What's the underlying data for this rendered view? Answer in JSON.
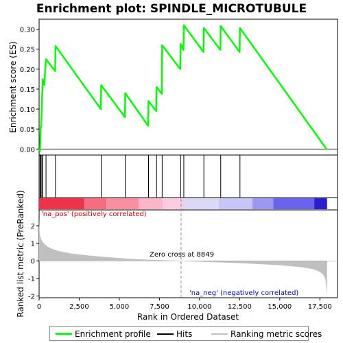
{
  "chart_data": {
    "type": "line",
    "title": "Enrichment plot: SPINDLE_MICROTUBULE",
    "es_panel": {
      "ylabel": "Enrichment score (ES)",
      "ylim": [
        -0.015,
        0.325
      ],
      "yticks": [
        "0.00",
        "0.05",
        "0.10",
        "0.15",
        "0.20",
        "0.25",
        "0.30"
      ],
      "ytick_values": [
        0.0,
        0.05,
        0.1,
        0.15,
        0.2,
        0.25,
        0.3
      ],
      "series": [
        {
          "name": "Enrichment profile",
          "color": "#00ff00",
          "x": [
            0,
            60,
            100,
            130,
            170,
            230,
            330,
            380,
            430,
            1000,
            1020,
            3850,
            3870,
            5350,
            5370,
            6800,
            6820,
            7300,
            7320,
            7650,
            7670,
            8800,
            8820,
            9000,
            9020,
            10250,
            10270,
            11300,
            11320,
            12500,
            12520,
            17950
          ],
          "y": [
            0.0,
            -0.005,
            0.055,
            0.055,
            0.11,
            0.175,
            0.16,
            0.2,
            0.225,
            0.195,
            0.258,
            0.1,
            0.16,
            0.08,
            0.14,
            0.058,
            0.12,
            0.095,
            0.155,
            0.138,
            0.26,
            0.2,
            0.263,
            0.248,
            0.31,
            0.243,
            0.303,
            0.248,
            0.308,
            0.243,
            0.303,
            -0.002
          ]
        }
      ]
    },
    "hits": [
      60,
      100,
      170,
      230,
      430,
      1020,
      3870,
      5370,
      6820,
      7320,
      7670,
      8820,
      9020,
      10270,
      11320,
      12520
    ],
    "hits_color": "#000000",
    "color_bar": {
      "segments": [
        {
          "from": 0,
          "to": 2800,
          "color": "#f0324a"
        },
        {
          "from": 2800,
          "to": 4200,
          "color": "#f76c7e"
        },
        {
          "from": 4200,
          "to": 6200,
          "color": "#fa8fa0"
        },
        {
          "from": 6200,
          "to": 7700,
          "color": "#fbb5c8"
        },
        {
          "from": 7700,
          "to": 9000,
          "color": "#fccce3"
        },
        {
          "from": 9000,
          "to": 11200,
          "color": "#dcd9f7"
        },
        {
          "from": 11200,
          "to": 13300,
          "color": "#c7c5f7"
        },
        {
          "from": 13300,
          "to": 14600,
          "color": "#9c98f2"
        },
        {
          "from": 14600,
          "to": 17150,
          "color": "#6a63ee"
        },
        {
          "from": 17150,
          "to": 17950,
          "color": "#2a1fd0"
        }
      ]
    },
    "metric_panel": {
      "ylabel": "Ranked list metric (PreRanked)",
      "ylim": [
        -2.1,
        2.9
      ],
      "yticks": [
        "-2",
        "-1",
        "0",
        "1",
        "2"
      ],
      "ytick_values": [
        -2,
        -1,
        0,
        1,
        2
      ],
      "fill_color": "#c0c0c0",
      "x": [
        0,
        20,
        60,
        120,
        200,
        350,
        500,
        800,
        1200,
        2000,
        3000,
        4000,
        5000,
        6000,
        7000,
        8000,
        8849,
        10000,
        11000,
        12000,
        13000,
        14000,
        15000,
        16000,
        16500,
        17000,
        17300,
        17550,
        17700,
        17800,
        17850,
        17900,
        17950
      ],
      "y": [
        2.4,
        1.75,
        1.45,
        1.25,
        1.1,
        0.95,
        0.82,
        0.68,
        0.56,
        0.42,
        0.31,
        0.23,
        0.16,
        0.1,
        0.06,
        0.03,
        0.0,
        -0.05,
        -0.08,
        -0.11,
        -0.15,
        -0.2,
        -0.25,
        -0.33,
        -0.38,
        -0.46,
        -0.55,
        -0.66,
        -0.78,
        -0.95,
        -1.1,
        -1.5,
        -1.9
      ],
      "zero_cross_label": "Zero cross at 8849",
      "zero_cross_x": 8849,
      "pos_label": "'na_pos' (positively correlated)",
      "pos_color": "#cc0000",
      "neg_label": "'na_neg' (negatively correlated)",
      "neg_color": "#0000cc"
    },
    "xlabel": "Rank in Ordered Dataset",
    "xlim": [
      0,
      18600
    ],
    "xticks": [
      "0",
      "2,500",
      "5,000",
      "7,500",
      "10,000",
      "12,500",
      "15,000",
      "17,500"
    ],
    "xtick_values": [
      0,
      2500,
      5000,
      7500,
      10000,
      12500,
      15000,
      17500
    ],
    "legend": [
      {
        "label": "Enrichment profile",
        "color": "#00ff00"
      },
      {
        "label": "Hits",
        "color": "#000000"
      },
      {
        "label": "Ranking metric scores",
        "color": "#c0c0c0"
      }
    ]
  }
}
